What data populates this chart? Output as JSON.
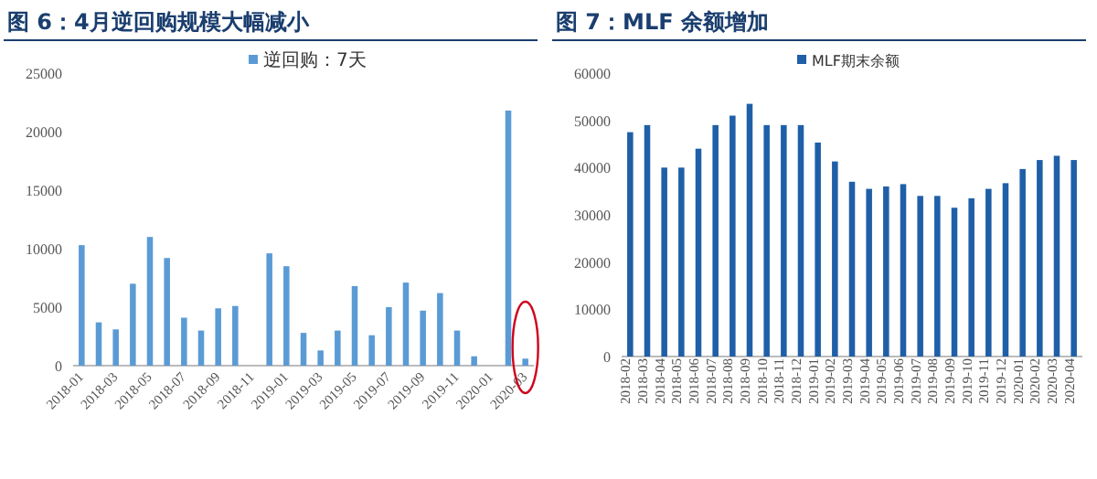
{
  "chart_data": [
    {
      "type": "bar",
      "title": "图 6：4月逆回购规模大幅减小",
      "legend": "top",
      "grid": false,
      "categories": [
        "2018-01",
        null,
        "2018-03",
        null,
        "2018-05",
        null,
        "2018-07",
        null,
        "2018-09",
        null,
        "2018-11",
        null,
        "2019-01",
        null,
        "2019-03",
        null,
        "2019-05",
        null,
        "2019-07",
        null,
        "2019-09",
        null,
        "2019-11",
        null,
        "2020-01",
        null,
        "2020-03"
      ],
      "series": [
        {
          "name": "逆回购：7天",
          "color": "#5b9bd5",
          "values": [
            10300,
            3700,
            3100,
            7000,
            11000,
            9200,
            4100,
            3000,
            4900,
            5100,
            null,
            9600,
            8500,
            2800,
            1300,
            3000,
            6800,
            2600,
            5000,
            7100,
            4700,
            6200,
            3000,
            800,
            null,
            21800,
            600
          ]
        }
      ],
      "ylim": [
        0,
        25000
      ],
      "yticks": [
        0,
        5000,
        10000,
        15000,
        20000,
        25000
      ]
    },
    {
      "type": "bar",
      "title": "图 7：MLF 余额增加",
      "legend": "top",
      "grid": false,
      "categories": [
        "2018-02",
        "2018-03",
        "2018-04",
        "2018-05",
        "2018-06",
        "2018-07",
        "2018-08",
        "2018-09",
        "2018-10",
        "2018-11",
        "2018-12",
        "2019-01",
        "2019-02",
        "2019-03",
        "2019-04",
        "2019-05",
        "2019-06",
        "2019-07",
        "2019-08",
        "2019-09",
        "2019-10",
        "2019-11",
        "2019-12",
        "2020-01",
        "2020-02",
        "2020-03",
        "2020-04"
      ],
      "series": [
        {
          "name": "MLF期末余额",
          "color": "#1f5fa8",
          "values": [
            47500,
            49000,
            40000,
            40000,
            44000,
            49000,
            51000,
            53500,
            49000,
            49000,
            49000,
            45300,
            41300,
            37000,
            35500,
            36000,
            36500,
            34000,
            34000,
            31500,
            33500,
            35500,
            36700,
            39700,
            41600,
            42500,
            41600
          ]
        }
      ],
      "ylim": [
        0,
        60000
      ],
      "yticks": [
        0,
        10000,
        20000,
        30000,
        40000,
        50000,
        60000
      ]
    }
  ]
}
